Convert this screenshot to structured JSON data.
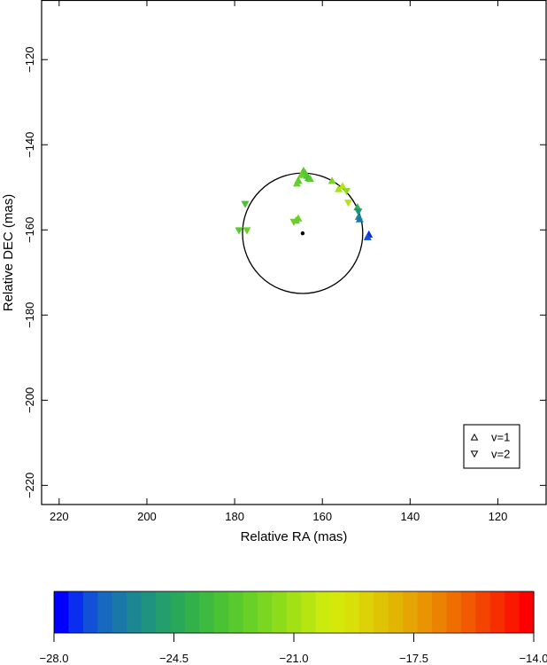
{
  "chart_data": {
    "type": "scatter",
    "xlabel": "Relative RA (mas)",
    "ylabel": "Relative DEC (mas)",
    "xlim": [
      224,
      109
    ],
    "ylim": [
      -224.5,
      -106
    ],
    "x_ticks": [
      220,
      200,
      180,
      160,
      140,
      120
    ],
    "y_ticks": [
      -120,
      -140,
      -160,
      -180,
      -200,
      -220
    ],
    "legend": {
      "placement": "bottom-right",
      "entries": [
        {
          "label": "v=1",
          "marker": "triangle-up"
        },
        {
          "label": "v=2",
          "marker": "triangle-down"
        }
      ]
    },
    "circle": {
      "center": [
        164.5,
        -160.8
      ],
      "radius": 13.7
    },
    "center_point": [
      164.5,
      -160.8
    ],
    "series": [
      {
        "name": "v=1",
        "marker": "triangle-up",
        "points": [
          {
            "x": 164.3,
            "y": -146.0,
            "v": -22.8
          },
          {
            "x": 163.9,
            "y": -146.6,
            "v": -22.6
          },
          {
            "x": 164.8,
            "y": -147.0,
            "v": -22.4
          },
          {
            "x": 163.5,
            "y": -147.2,
            "v": -22.9
          },
          {
            "x": 163.2,
            "y": -147.7,
            "v": -23.0
          },
          {
            "x": 162.8,
            "y": -147.9,
            "v": -22.7
          },
          {
            "x": 165.5,
            "y": -148.3,
            "v": -22.5
          },
          {
            "x": 165.8,
            "y": -149.0,
            "v": -22.3
          },
          {
            "x": 166.0,
            "y": -157.7,
            "v": -22.1
          },
          {
            "x": 165.5,
            "y": -157.2,
            "v": -22.4
          },
          {
            "x": 156.3,
            "y": -150.3,
            "v": -21.2
          },
          {
            "x": 155.4,
            "y": -149.6,
            "v": -20.6
          },
          {
            "x": 157.8,
            "y": -148.4,
            "v": -22.0
          },
          {
            "x": 152.0,
            "y": -154.6,
            "v": -23.8
          },
          {
            "x": 151.7,
            "y": -156.8,
            "v": -25.8
          },
          {
            "x": 151.5,
            "y": -157.4,
            "v": -26.0
          },
          {
            "x": 149.4,
            "y": -161.0,
            "v": -27.3
          },
          {
            "x": 149.7,
            "y": -161.6,
            "v": -27.0
          }
        ]
      },
      {
        "name": "v=2",
        "marker": "triangle-down",
        "points": [
          {
            "x": 179.0,
            "y": -160.2,
            "v": -22.6
          },
          {
            "x": 177.2,
            "y": -160.2,
            "v": -22.2
          },
          {
            "x": 177.6,
            "y": -154.0,
            "v": -23.1
          },
          {
            "x": 166.5,
            "y": -158.2,
            "v": -22.3
          },
          {
            "x": 154.5,
            "y": -151.0,
            "v": -21.5
          },
          {
            "x": 154.1,
            "y": -153.7,
            "v": -20.7
          },
          {
            "x": 151.8,
            "y": -155.8,
            "v": -25.3
          }
        ]
      }
    ],
    "colorbar": {
      "min": -28.0,
      "max": -14.0,
      "ticks": [
        "−28.0",
        "−24.5",
        "−21.0",
        "−17.5",
        "−14.0"
      ],
      "colors": [
        "#0000ff",
        "#0a2ef0",
        "#1250d8",
        "#1768bf",
        "#1a78a8",
        "#1c8693",
        "#1f937f",
        "#239e6c",
        "#2aa85a",
        "#32b14a",
        "#3dba3f",
        "#4ac236",
        "#58c92e",
        "#68d027",
        "#7ad621",
        "#8ddc1b",
        "#a1e116",
        "#b6e612",
        "#caeb0d",
        "#d4e80a",
        "#d9df08",
        "#dcd207",
        "#dfc406",
        "#e2b505",
        "#e5a504",
        "#e89403",
        "#eb8202",
        "#ee6e02",
        "#f15a01",
        "#f44401",
        "#f72e00",
        "#fa1800",
        "#ff0000"
      ]
    }
  }
}
